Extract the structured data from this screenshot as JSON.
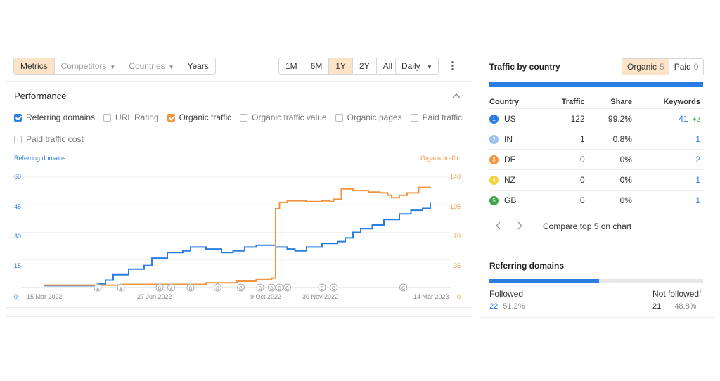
{
  "toolbar": {
    "tabs": [
      "Metrics",
      "Competitors",
      "Countries",
      "Years"
    ],
    "ranges": [
      "1M",
      "6M",
      "1Y",
      "2Y",
      "All"
    ],
    "interval": "Daily",
    "more": "⋮"
  },
  "performance": {
    "title": "Performance",
    "collapse_icon": "chevron-up-icon",
    "checkboxes": [
      {
        "label": "Referring domains",
        "checked": true,
        "color": "#2a7de1"
      },
      {
        "label": "URL Rating",
        "checked": false
      },
      {
        "label": "Organic traffic",
        "checked": true,
        "color": "#f2943f"
      },
      {
        "label": "Organic traffic value",
        "checked": false
      },
      {
        "label": "Organic pages",
        "checked": false
      },
      {
        "label": "Paid traffic",
        "checked": false
      },
      {
        "label": "Paid traffic cost",
        "checked": false
      }
    ]
  },
  "chart_data": {
    "type": "line",
    "left_axis_label": "Referring domains",
    "right_axis_label": "Organic traffic",
    "left_ticks": [
      "0",
      "15",
      "30",
      "45",
      "60"
    ],
    "right_ticks": [
      "0",
      "35",
      "70",
      "105",
      "140"
    ],
    "x_ticks": [
      "15 Mar 2022",
      "27 Jun 2022",
      "9 Oct 2022",
      "30 Nov 2022",
      "14 Mar 2023"
    ],
    "ylim_left": [
      0,
      60
    ],
    "ylim_right": [
      0,
      140
    ],
    "grid": true,
    "series": [
      {
        "name": "Referring domains",
        "color": "#2a7de1",
        "axis": "left",
        "x": [
          0,
          0.04,
          0.1,
          0.14,
          0.16,
          0.18,
          0.22,
          0.26,
          0.28,
          0.32,
          0.36,
          0.38,
          0.42,
          0.46,
          0.49,
          0.52,
          0.55,
          0.6,
          0.63,
          0.65,
          0.68,
          0.72,
          0.76,
          0.78,
          0.8,
          0.82,
          0.85,
          0.88,
          0.92,
          0.95,
          0.98,
          1
        ],
        "values": [
          1,
          1,
          1,
          2,
          4,
          7,
          10,
          12,
          16,
          19,
          20,
          22,
          21,
          19,
          20,
          22,
          23,
          22,
          21,
          20,
          22,
          24,
          25,
          27,
          30,
          32,
          34,
          37,
          40,
          42,
          43,
          46
        ]
      },
      {
        "name": "Organic traffic",
        "color": "#f2943f",
        "axis": "right",
        "x": [
          0,
          0.04,
          0.1,
          0.2,
          0.3,
          0.42,
          0.5,
          0.55,
          0.59,
          0.6,
          0.61,
          0.63,
          0.68,
          0.72,
          0.74,
          0.75,
          0.77,
          0.8,
          0.84,
          0.87,
          0.89,
          0.9,
          0.92,
          0.94,
          0.97,
          1
        ],
        "values": [
          3,
          3,
          3,
          4,
          4,
          6,
          8,
          10,
          12,
          100,
          108,
          110,
          109,
          110,
          109,
          112,
          125,
          123,
          121,
          120,
          117,
          114,
          117,
          120,
          127,
          126
        ]
      }
    ],
    "annotations": [
      "a",
      "a",
      "G",
      "a",
      "G",
      "G",
      "G",
      "G",
      "G",
      "G",
      "G",
      "G",
      "G",
      "G",
      "G",
      "G"
    ]
  },
  "traffic_by_country": {
    "title": "Traffic by country",
    "toggle": [
      {
        "label": "Organic",
        "count": "5"
      },
      {
        "label": "Paid",
        "count": "0"
      }
    ],
    "columns": [
      "Country",
      "Traffic",
      "Share",
      "Keywords"
    ],
    "rows": [
      {
        "rank": "1",
        "code": "US",
        "traffic": "122",
        "share": "99.2%",
        "keywords": "41",
        "delta": "+2",
        "color": "#2a7de1"
      },
      {
        "rank": "2",
        "code": "IN",
        "traffic": "1",
        "share": "0.8%",
        "keywords": "1",
        "delta": "",
        "color": "#9cc3ef"
      },
      {
        "rank": "3",
        "code": "DE",
        "traffic": "0",
        "share": "0%",
        "keywords": "2",
        "delta": "",
        "color": "#f2943f"
      },
      {
        "rank": "4",
        "code": "NZ",
        "traffic": "0",
        "share": "0%",
        "keywords": "1",
        "delta": "",
        "color": "#f2d23f"
      },
      {
        "rank": "5",
        "code": "GB",
        "traffic": "0",
        "share": "0%",
        "keywords": "1",
        "delta": "",
        "color": "#3ea34a"
      }
    ],
    "compare_label": "Compare top 5 on chart"
  },
  "referring_domains": {
    "title": "Referring domains",
    "followed_label": "Followed",
    "not_followed_label": "Not followed",
    "info_mark": "i",
    "followed_count": "22",
    "followed_pct": "51.2%",
    "not_followed_count": "21",
    "not_followed_pct": "48.8%",
    "followed_fraction": 0.512
  }
}
